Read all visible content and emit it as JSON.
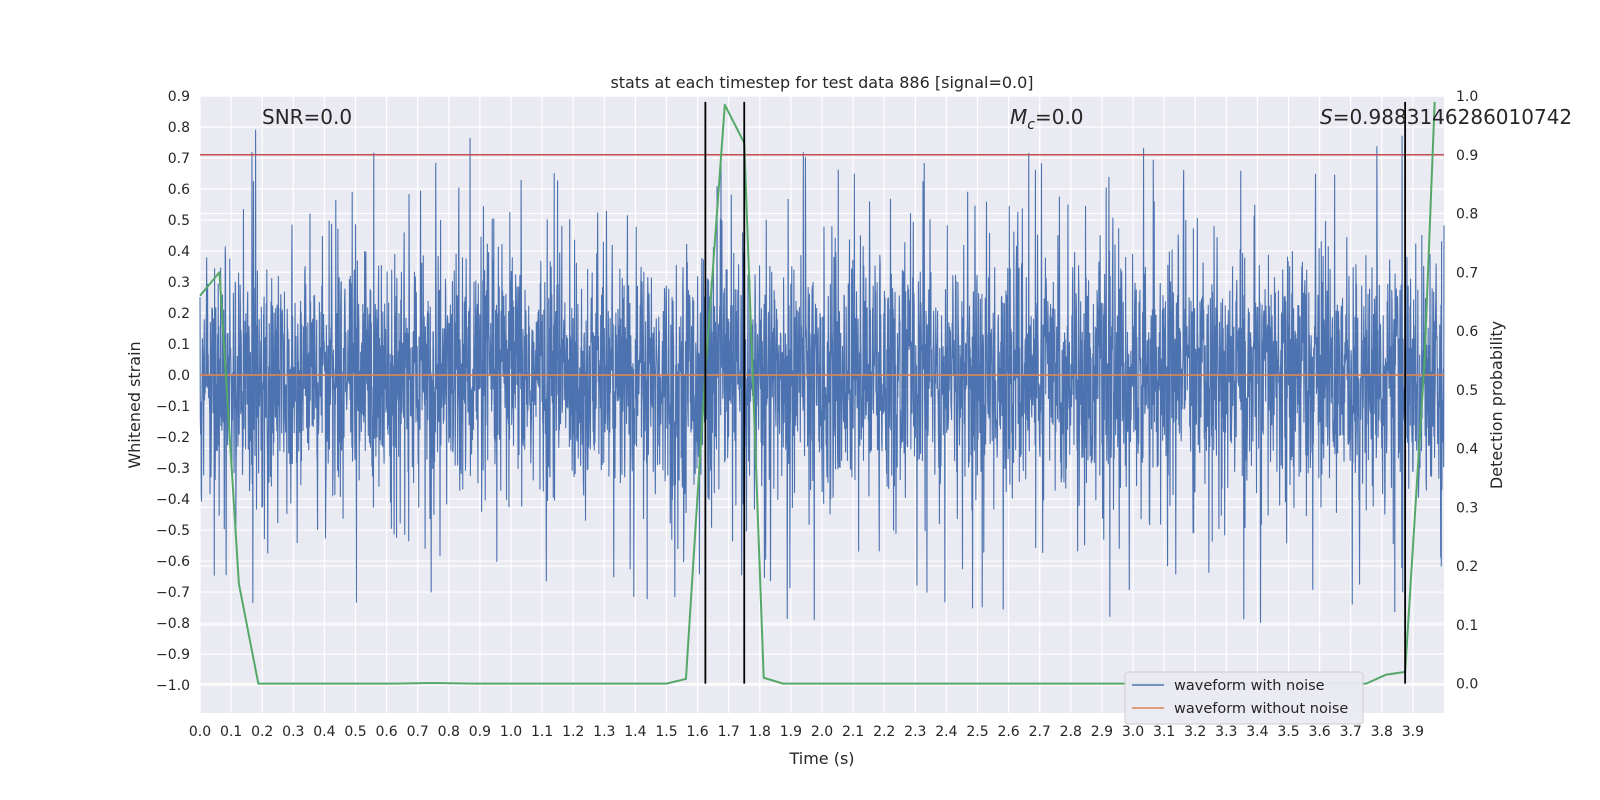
{
  "chart_data": {
    "type": "line",
    "title": "stats at each timestep for test data 886 [signal=0.0]",
    "xlabel": "Time (s)",
    "ylabel_left": "Whitened strain",
    "ylabel_right": "Detection probability",
    "xlim": [
      0.0,
      4.0
    ],
    "ylim_left": [
      -1.09,
      0.9
    ],
    "ylim_right": [
      -0.05,
      1.0
    ],
    "x_ticks": [
      0.0,
      0.1,
      0.2,
      0.3,
      0.4,
      0.5,
      0.6,
      0.7,
      0.8,
      0.9,
      1.0,
      1.1,
      1.2,
      1.3,
      1.4,
      1.5,
      1.6,
      1.7,
      1.8,
      1.9,
      2.0,
      2.1,
      2.2,
      2.3,
      2.4,
      2.5,
      2.6,
      2.7,
      2.8,
      2.9,
      3.0,
      3.1,
      3.2,
      3.3,
      3.4,
      3.5,
      3.6,
      3.7,
      3.8,
      3.9
    ],
    "x_tick_labels": [
      "0.0",
      "0.1",
      "0.2",
      "0.3",
      "0.4",
      "0.5",
      "0.6",
      "0.7",
      "0.8",
      "0.9",
      "1.0",
      "1.1",
      "1.2",
      "1.3",
      "1.4",
      "1.5",
      "1.6",
      "1.7",
      "1.8",
      "1.9",
      "2.0",
      "2.1",
      "2.2",
      "2.3",
      "2.4",
      "2.5",
      "2.6",
      "2.7",
      "2.8",
      "2.9",
      "3.0",
      "3.1",
      "3.2",
      "3.3",
      "3.4",
      "3.5",
      "3.6",
      "3.7",
      "3.8",
      "3.9"
    ],
    "y_left_ticks": [
      0.9,
      0.8,
      0.7,
      0.6,
      0.5,
      0.4,
      0.3,
      0.2,
      0.1,
      0.0,
      -0.1,
      -0.2,
      -0.3,
      -0.4,
      -0.5,
      -0.6,
      -0.7,
      -0.8,
      -0.9,
      -1.0
    ],
    "y_left_tick_labels": [
      "0.9",
      "0.8",
      "0.7",
      "0.6",
      "0.5",
      "0.4",
      "0.3",
      "0.2",
      "0.1",
      "0.0",
      "−0.1",
      "−0.2",
      "−0.3",
      "−0.4",
      "−0.5",
      "−0.6",
      "−0.7",
      "−0.8",
      "−0.9",
      "−1.0"
    ],
    "y_right_ticks": [
      1.0,
      0.9,
      0.8,
      0.7,
      0.6,
      0.5,
      0.4,
      0.3,
      0.2,
      0.1,
      0.0
    ],
    "y_right_tick_labels": [
      "1.0",
      "0.9",
      "0.8",
      "0.7",
      "0.6",
      "0.5",
      "0.4",
      "0.3",
      "0.2",
      "0.1",
      "0.0"
    ],
    "grid": true,
    "legend_position": "lower-right",
    "series": [
      {
        "name": "waveform with noise",
        "axis": "left",
        "color": "#4c72b0",
        "note": "dense noise trace sampled across 0.0–4.0 s, mostly within −0.45…0.45 with spikes"
      },
      {
        "name": "waveform without noise",
        "axis": "left",
        "color": "#dd8452",
        "x": [
          0.0,
          4.0
        ],
        "y": [
          0.0,
          0.0
        ]
      },
      {
        "axis": "right",
        "color": "#55a868",
        "x": [
          0.0,
          0.0625,
          0.125,
          0.1875,
          0.25,
          0.375,
          0.5,
          0.625,
          0.75,
          0.875,
          1.0,
          1.125,
          1.25,
          1.375,
          1.5,
          1.5625,
          1.625,
          1.6875,
          1.75,
          1.8125,
          1.875,
          2.0,
          2.25,
          2.5,
          2.75,
          3.0,
          3.25,
          3.5,
          3.75,
          3.8125,
          3.875,
          3.9375,
          3.97
        ],
        "y": [
          0.66,
          0.7,
          0.17,
          0.0,
          0.0,
          0.0,
          0.0,
          0.0,
          0.001,
          0.0,
          0.0,
          0.0,
          0.0,
          0.0,
          0.0,
          0.008,
          0.53,
          0.985,
          0.92,
          0.01,
          0.0,
          0.0,
          0.0,
          0.0,
          0.0,
          0.0,
          0.0,
          0.0,
          0.0,
          0.015,
          0.02,
          0.55,
          0.99
        ]
      }
    ],
    "hlines": [
      {
        "axis": "right",
        "y": 0.9,
        "color": "#c44e52"
      }
    ],
    "vlines": [
      {
        "x": 1.625,
        "color": "#000000"
      },
      {
        "x": 1.75,
        "color": "#000000"
      },
      {
        "x": 3.875,
        "color": "#000000"
      }
    ],
    "annotations": [
      {
        "text": "SNR=0.0",
        "x": 0.2,
        "y": 0.8
      },
      {
        "text_main": "M",
        "text_sub": "c",
        "text_rest": "=0.0",
        "x": 2.6,
        "y": 0.8
      },
      {
        "text_main": "S",
        "text_rest": "=0.9883146286010742",
        "x": 3.6,
        "y": 0.8
      }
    ]
  }
}
